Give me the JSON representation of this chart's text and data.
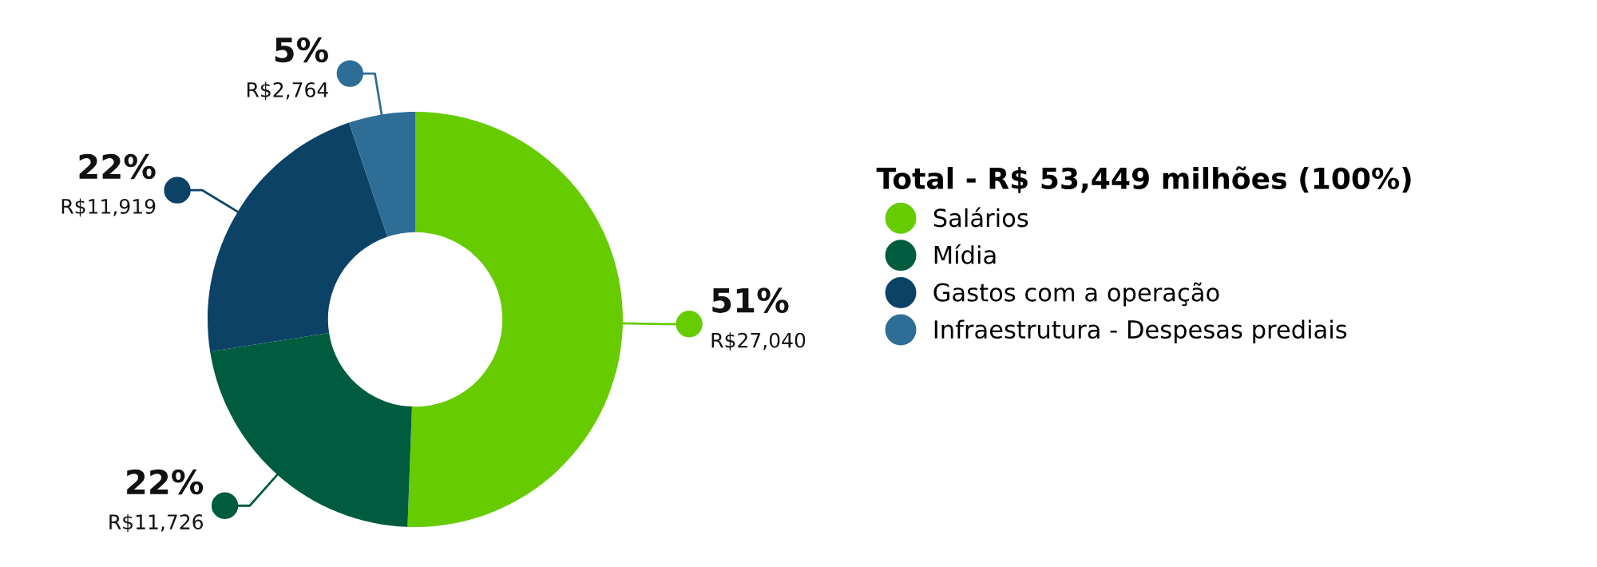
{
  "chart_data": {
    "type": "donut",
    "legend_title": "Total - R$ 53,449 milhões (100%)",
    "categories": [
      "Salários",
      "Mídia",
      "Gastos com a operação",
      "Infraestrutura - Despesas prediais"
    ],
    "values": [
      27040,
      11726,
      11919,
      2764
    ],
    "colors": [
      "#66cc00",
      "#005c3f",
      "#0c4266",
      "#2e6e96"
    ],
    "value_labels": [
      "51%\nR$27,040",
      "22%\nR$11,726",
      "22%\nR$11,919",
      "5%\nR$2,764"
    ],
    "legend": "right"
  }
}
